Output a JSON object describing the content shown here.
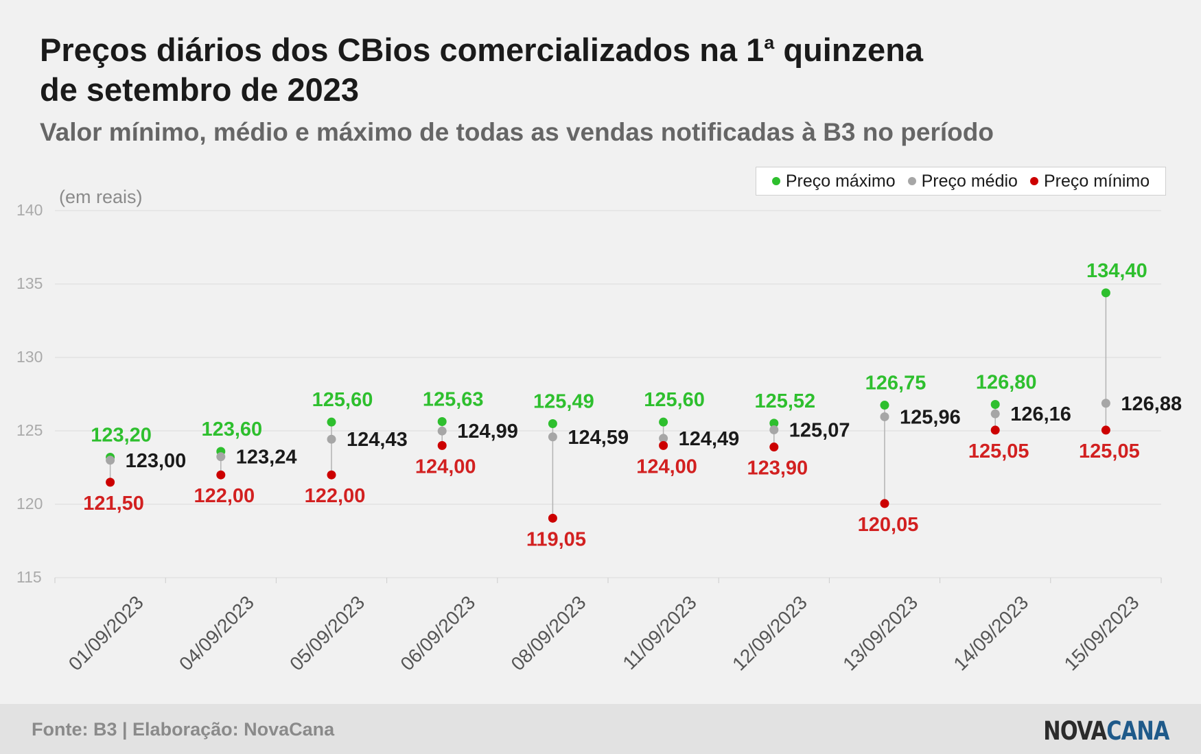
{
  "header": {
    "title_line1": "Preços diários dos CBios comercializados na 1",
    "title_sup": "a",
    "title_after_sup": " quinzena",
    "title_line2": "de setembro de 2023",
    "subtitle": "Valor mínimo, médio e máximo de todas as vendas notificadas à B3 no período"
  },
  "legend": {
    "items": [
      {
        "label": "Preço máximo",
        "color": "#2ebf2e"
      },
      {
        "label": "Preço médio",
        "color": "#a6a6a6"
      },
      {
        "label": "Preço mínimo",
        "color": "#cc0000"
      }
    ]
  },
  "footer": {
    "source": "Fonte: B3 | Elaboração: NovaCana",
    "logo_part1": "NOVA",
    "logo_part2": "CANA"
  },
  "chart_data": {
    "type": "scatter",
    "ylabel": "(em reais)",
    "ylim": [
      115,
      140
    ],
    "yticks": [
      115,
      120,
      125,
      130,
      135,
      140
    ],
    "grid": true,
    "legend_position": "top-right",
    "categories": [
      "01/09/2023",
      "04/09/2023",
      "05/09/2023",
      "06/09/2023",
      "08/09/2023",
      "11/09/2023",
      "12/09/2023",
      "13/09/2023",
      "14/09/2023",
      "15/09/2023"
    ],
    "series": [
      {
        "name": "Preço máximo",
        "color": "#2ebf2e",
        "label_color": "#2ebf2e",
        "values": [
          123.2,
          123.6,
          125.6,
          125.63,
          125.49,
          125.6,
          125.52,
          126.75,
          126.8,
          134.4
        ],
        "labels": [
          "123,20",
          "123,60",
          "125,60",
          "125,63",
          "125,49",
          "125,60",
          "125,52",
          "126,75",
          "126,80",
          "134,40"
        ]
      },
      {
        "name": "Preço médio",
        "color": "#a6a6a6",
        "label_color": "#1a1a1a",
        "values": [
          123.0,
          123.24,
          124.43,
          124.99,
          124.59,
          124.49,
          125.07,
          125.96,
          126.16,
          126.88
        ],
        "labels": [
          "123,00",
          "123,24",
          "124,43",
          "124,99",
          "124,59",
          "124,49",
          "125,07",
          "125,96",
          "126,16",
          "126,88"
        ]
      },
      {
        "name": "Preço mínimo",
        "color": "#cc0000",
        "label_color": "#d22020",
        "values": [
          121.5,
          122.0,
          122.0,
          124.0,
          119.05,
          124.0,
          123.9,
          120.05,
          125.05,
          125.05
        ],
        "labels": [
          "121,50",
          "122,00",
          "122,00",
          "124,00",
          "119,05",
          "124,00",
          "123,90",
          "120,05",
          "125,05",
          "125,05"
        ]
      }
    ]
  }
}
